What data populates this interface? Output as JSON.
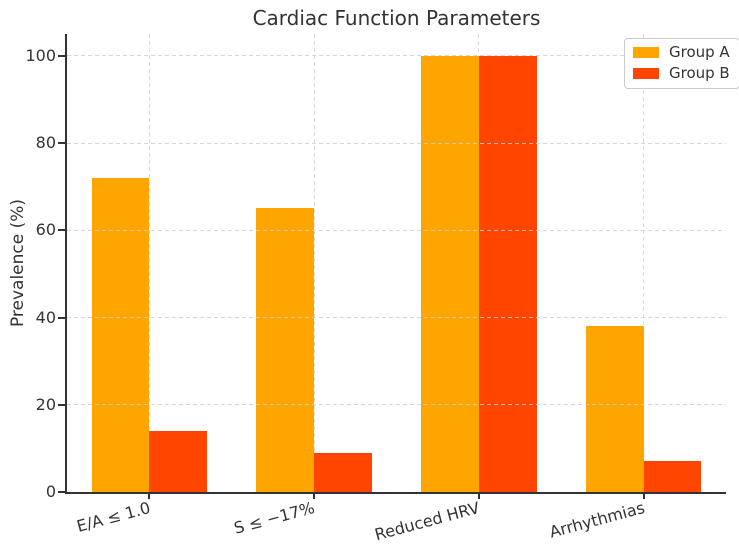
{
  "chart_data": {
    "type": "bar",
    "title": "Cardiac Function Parameters",
    "ylabel": "Prevalence (%)",
    "xlabel": "",
    "categories": [
      "E/A ≤ 1.0",
      "S ≤ −17%",
      "Reduced HRV",
      "Arrhythmias"
    ],
    "series": [
      {
        "name": "Group A",
        "color": "#FFA500",
        "values": [
          72,
          65,
          100,
          38
        ]
      },
      {
        "name": "Group B",
        "color": "#FF4500",
        "values": [
          14,
          9,
          100,
          7
        ]
      }
    ],
    "ylim": [
      0,
      105
    ],
    "yticks": [
      0,
      20,
      40,
      60,
      80,
      100
    ],
    "bar_width": 0.35,
    "grid": "dashed",
    "legend_position": "upper-right",
    "colors": {
      "text": "#333333",
      "spine": "#333333",
      "grid": "#d9d9d9",
      "legend_border": "#cccccc",
      "background": "#ffffff"
    }
  }
}
